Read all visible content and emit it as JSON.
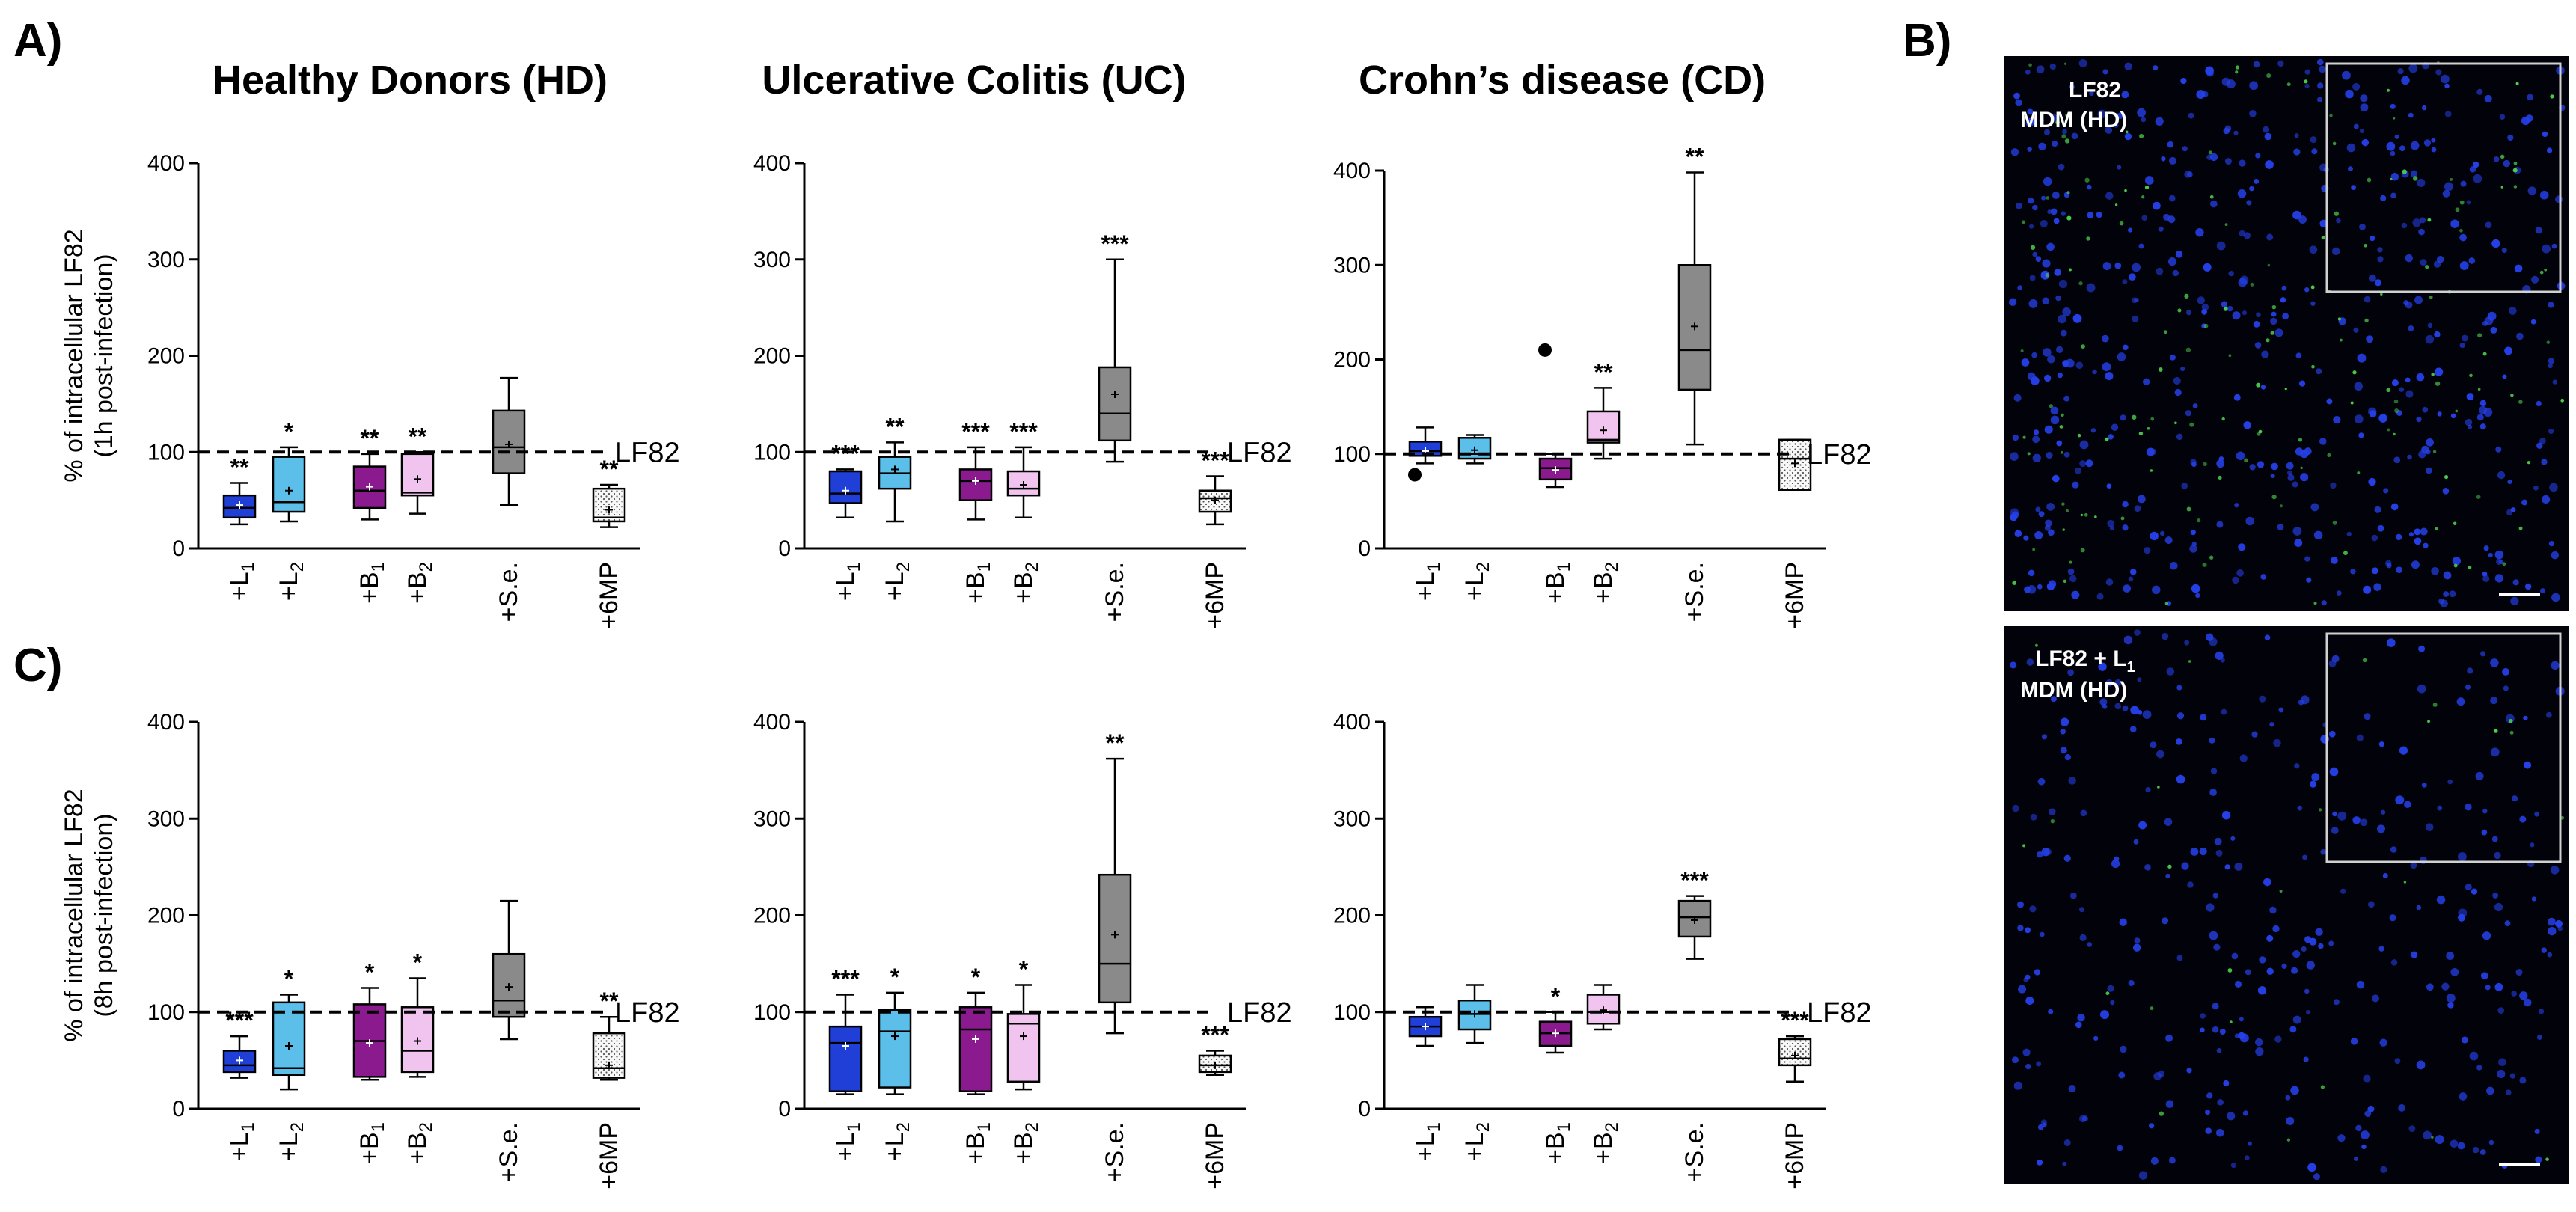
{
  "panel_labels": {
    "A": "A)",
    "B": "B)",
    "C": "C)"
  },
  "columns": [
    "Healthy Donors (HD)",
    "Ulcerative Colitis (UC)",
    "Crohn’s disease (CD)"
  ],
  "y_label_row1": [
    "% of intracellular LF82",
    "(1h post-infection)"
  ],
  "y_label_row2": [
    "% of intracellular LF82",
    "(8h post-infection)"
  ],
  "reference_label": "LF82",
  "categories": [
    "+L1",
    "+L2",
    "+B1",
    "+B2",
    "+S.e.",
    "+6MP"
  ],
  "category_base": [
    "+L",
    "+L",
    "+B",
    "+B",
    "+S.e.",
    "+6MP"
  ],
  "category_sub": [
    "1",
    "2",
    "1",
    "2",
    "",
    ""
  ],
  "colors": {
    "L1": "#1f3fd6",
    "L2": "#5bbfe9",
    "B1": "#8b1a8f",
    "B2": "#f1c4f0",
    "Se": "#8a8a8a",
    "MP6": "#f4f4f4",
    "image_bg": "#02020a",
    "nuclei": "#2540e8",
    "bacteria": "#4cd24c"
  },
  "images": {
    "top": {
      "label_line1": "LF82",
      "label_line2": "MDM (HD)"
    },
    "bottom": {
      "label_line1": "LF82 + L",
      "label_sub": "1",
      "label_line2": "MDM (HD)"
    }
  },
  "chart_data": [
    {
      "id": "HD-1h",
      "type": "box",
      "title": "Healthy Donors (HD)",
      "ylim": [
        0,
        400
      ],
      "yticks": [
        0,
        100,
        200,
        300,
        400
      ],
      "reference": 100,
      "categories": [
        "+L1",
        "+L2",
        "+B1",
        "+B2",
        "+S.e.",
        "+6MP"
      ],
      "boxes": [
        {
          "min": 25,
          "q1": 32,
          "median": 42,
          "q3": 55,
          "max": 68,
          "mean": 45,
          "sig": "**"
        },
        {
          "min": 28,
          "q1": 38,
          "median": 48,
          "q3": 95,
          "max": 105,
          "mean": 60,
          "sig": "*"
        },
        {
          "min": 30,
          "q1": 42,
          "median": 60,
          "q3": 85,
          "max": 98,
          "mean": 64,
          "sig": "**"
        },
        {
          "min": 36,
          "q1": 55,
          "median": 58,
          "q3": 98,
          "max": 100,
          "mean": 72,
          "sig": "**"
        },
        {
          "min": 45,
          "q1": 78,
          "median": 105,
          "q3": 143,
          "max": 177,
          "mean": 108,
          "sig": ""
        },
        {
          "min": 22,
          "q1": 28,
          "median": 32,
          "q3": 62,
          "max": 66,
          "mean": 40,
          "sig": "**"
        }
      ]
    },
    {
      "id": "UC-1h",
      "type": "box",
      "title": "Ulcerative Colitis (UC)",
      "ylim": [
        0,
        400
      ],
      "yticks": [
        0,
        100,
        200,
        300,
        400
      ],
      "reference": 100,
      "categories": [
        "+L1",
        "+L2",
        "+B1",
        "+B2",
        "+S.e.",
        "+6MP"
      ],
      "boxes": [
        {
          "min": 32,
          "q1": 47,
          "median": 57,
          "q3": 80,
          "max": 82,
          "mean": 60,
          "sig": "***"
        },
        {
          "min": 28,
          "q1": 62,
          "median": 78,
          "q3": 95,
          "max": 110,
          "mean": 82,
          "sig": "**"
        },
        {
          "min": 30,
          "q1": 50,
          "median": 70,
          "q3": 82,
          "max": 105,
          "mean": 70,
          "sig": "***"
        },
        {
          "min": 32,
          "q1": 55,
          "median": 62,
          "q3": 80,
          "max": 105,
          "mean": 66,
          "sig": "***"
        },
        {
          "min": 90,
          "q1": 112,
          "median": 140,
          "q3": 188,
          "max": 300,
          "mean": 160,
          "sig": "***"
        },
        {
          "min": 25,
          "q1": 38,
          "median": 52,
          "q3": 60,
          "max": 75,
          "mean": 50,
          "sig": "***"
        }
      ]
    },
    {
      "id": "CD-1h",
      "type": "box",
      "title": "Crohn’s disease (CD)",
      "ylim": [
        0,
        400
      ],
      "yticks": [
        0,
        100,
        200,
        300,
        400
      ],
      "reference": 100,
      "categories": [
        "+L1",
        "+L2",
        "+B1",
        "+B2",
        "+S.e.",
        "+6MP"
      ],
      "boxes": [
        {
          "min": 90,
          "q1": 98,
          "median": 103,
          "q3": 113,
          "max": 128,
          "mean": 103,
          "outliers": [
            78
          ],
          "sig": ""
        },
        {
          "min": 90,
          "q1": 95,
          "median": 100,
          "q3": 117,
          "max": 120,
          "mean": 104,
          "sig": ""
        },
        {
          "min": 65,
          "q1": 73,
          "median": 85,
          "q3": 95,
          "max": 100,
          "mean": 83,
          "outliers": [
            210
          ],
          "sig": ""
        },
        {
          "min": 95,
          "q1": 112,
          "median": 115,
          "q3": 145,
          "max": 170,
          "mean": 125,
          "sig": "**"
        },
        {
          "min": 110,
          "q1": 168,
          "median": 210,
          "q3": 300,
          "max": 398,
          "mean": 235,
          "sig": "**"
        },
        {
          "min": 62,
          "q1": 62,
          "median": 95,
          "q3": 115,
          "max": 115,
          "mean": 90,
          "sig": ""
        }
      ]
    },
    {
      "id": "HD-8h",
      "type": "box",
      "title": "Healthy Donors (HD)",
      "ylim": [
        0,
        400
      ],
      "yticks": [
        0,
        100,
        200,
        300,
        400
      ],
      "reference": 100,
      "categories": [
        "+L1",
        "+L2",
        "+B1",
        "+B2",
        "+S.e.",
        "+6MP"
      ],
      "boxes": [
        {
          "min": 32,
          "q1": 38,
          "median": 45,
          "q3": 60,
          "max": 75,
          "mean": 50,
          "sig": "***"
        },
        {
          "min": 20,
          "q1": 35,
          "median": 42,
          "q3": 110,
          "max": 118,
          "mean": 65,
          "sig": "*"
        },
        {
          "min": 30,
          "q1": 33,
          "median": 70,
          "q3": 108,
          "max": 125,
          "mean": 68,
          "sig": "*"
        },
        {
          "min": 33,
          "q1": 38,
          "median": 60,
          "q3": 105,
          "max": 135,
          "mean": 70,
          "sig": "*"
        },
        {
          "min": 72,
          "q1": 95,
          "median": 112,
          "q3": 160,
          "max": 215,
          "mean": 126,
          "sig": ""
        },
        {
          "min": 30,
          "q1": 32,
          "median": 42,
          "q3": 78,
          "max": 95,
          "mean": 45,
          "sig": "**"
        }
      ]
    },
    {
      "id": "UC-8h",
      "type": "box",
      "title": "Ulcerative Colitis (UC)",
      "ylim": [
        0,
        400
      ],
      "yticks": [
        0,
        100,
        200,
        300,
        400
      ],
      "reference": 100,
      "categories": [
        "+L1",
        "+L2",
        "+B1",
        "+B2",
        "+S.e.",
        "+6MP"
      ],
      "boxes": [
        {
          "min": 15,
          "q1": 18,
          "median": 68,
          "q3": 85,
          "max": 118,
          "mean": 65,
          "sig": "***"
        },
        {
          "min": 15,
          "q1": 22,
          "median": 80,
          "q3": 102,
          "max": 120,
          "mean": 75,
          "sig": "*"
        },
        {
          "min": 15,
          "q1": 18,
          "median": 82,
          "q3": 105,
          "max": 120,
          "mean": 72,
          "sig": "*"
        },
        {
          "min": 20,
          "q1": 28,
          "median": 88,
          "q3": 98,
          "max": 128,
          "mean": 75,
          "sig": "*"
        },
        {
          "min": 78,
          "q1": 110,
          "median": 150,
          "q3": 242,
          "max": 362,
          "mean": 180,
          "sig": "**"
        },
        {
          "min": 35,
          "q1": 38,
          "median": 45,
          "q3": 55,
          "max": 60,
          "mean": 45,
          "sig": "***"
        }
      ]
    },
    {
      "id": "CD-8h",
      "type": "box",
      "title": "Crohn’s disease (CD)",
      "ylim": [
        0,
        400
      ],
      "yticks": [
        0,
        100,
        200,
        300,
        400
      ],
      "reference": 100,
      "categories": [
        "+L1",
        "+L2",
        "+B1",
        "+B2",
        "+S.e.",
        "+6MP"
      ],
      "boxes": [
        {
          "min": 65,
          "q1": 75,
          "median": 85,
          "q3": 95,
          "max": 105,
          "mean": 85,
          "sig": ""
        },
        {
          "min": 68,
          "q1": 82,
          "median": 98,
          "q3": 112,
          "max": 128,
          "mean": 98,
          "sig": ""
        },
        {
          "min": 58,
          "q1": 65,
          "median": 78,
          "q3": 90,
          "max": 100,
          "mean": 78,
          "sig": "*"
        },
        {
          "min": 82,
          "q1": 88,
          "median": 100,
          "q3": 118,
          "max": 128,
          "mean": 102,
          "sig": ""
        },
        {
          "min": 155,
          "q1": 178,
          "median": 198,
          "q3": 215,
          "max": 220,
          "mean": 195,
          "sig": "***"
        },
        {
          "min": 28,
          "q1": 45,
          "median": 52,
          "q3": 72,
          "max": 75,
          "mean": 55,
          "sig": "***"
        }
      ]
    }
  ]
}
